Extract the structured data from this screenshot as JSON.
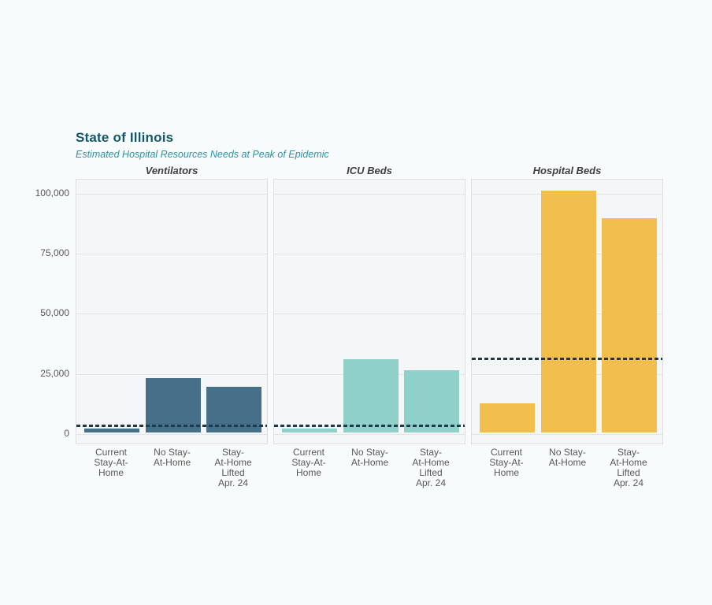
{
  "window": {
    "background": "#F7FBFC"
  },
  "header": {
    "title": "State of Illinois",
    "subtitle": "Estimated Hospital Resources Needs at Peak of Epidemic"
  },
  "colors": {
    "title": "#14566B",
    "subtitle": "#2A95A8",
    "panel_title": "#3F3F3F",
    "axis_label": "#595959",
    "panel_background": "#F5F6F8",
    "panel_border": "#DEDFE1",
    "gridline": "#E3E4E6",
    "capacity_dashed_line": "#1E3A4D",
    "ventilators_bar": "#46708A",
    "icu_beds_bar": "#8FD0C9",
    "hospital_beds_bar": "#F2BF4E"
  },
  "chart_data": {
    "type": "bar",
    "title": "State of Illinois",
    "subtitle": "Estimated Hospital Resources Needs at Peak of Epidemic",
    "categories": [
      "Current Stay-At-Home",
      "No Stay-At-Home",
      "Stay-At-Home Lifted Apr. 24"
    ],
    "category_label_lines": [
      [
        "Current",
        "Stay-At-",
        "Home"
      ],
      [
        "No Stay-",
        "At-Home"
      ],
      [
        "Stay-",
        "At-Home",
        "Lifted",
        "Apr. 24"
      ]
    ],
    "ylim": [
      0,
      105000
    ],
    "yticks": [
      0,
      25000,
      50000,
      75000,
      100000
    ],
    "ytick_labels": [
      "0",
      "25,000",
      "50,000",
      "75,000",
      "100,000"
    ],
    "grid": true,
    "legend": false,
    "panels": [
      {
        "title": "Ventilators",
        "bar_color": "#46708A",
        "values": [
          1500,
          22500,
          19000
        ],
        "dashed_capacity_line": 3200
      },
      {
        "title": "ICU Beds",
        "bar_color": "#8FD0C9",
        "values": [
          1800,
          30500,
          26000
        ],
        "dashed_capacity_line": 3200
      },
      {
        "title": "Hospital Beds",
        "bar_color": "#F2BF4E",
        "values": [
          12000,
          100500,
          89000
        ],
        "dashed_capacity_line": 31000
      }
    ]
  }
}
